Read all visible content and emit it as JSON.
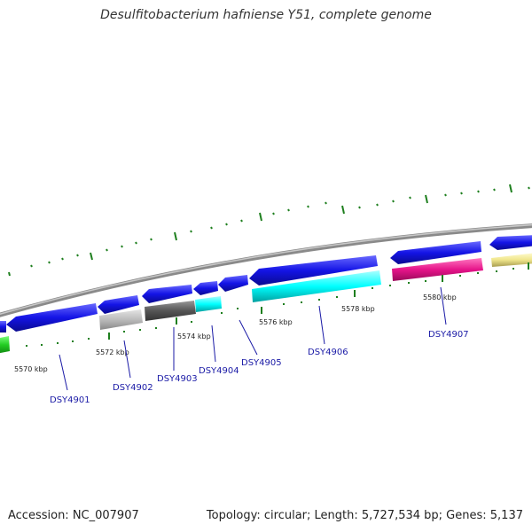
{
  "title": "Desulfitobacterium hafniense Y51, complete genome",
  "footer": {
    "accession": "Accession: NC_007907",
    "summary": "Topology: circular; Length: 5,727,534 bp; Genes: 5,137"
  },
  "colors": {
    "backbone": "#888888",
    "forward_strand": "#1414e6",
    "tick": "#1e7f1e",
    "label": "#1a1aa6"
  },
  "scale_labels": [
    "5570 kbp",
    "5572 kbp",
    "5574 kbp",
    "5576 kbp",
    "5578 kbp",
    "5580 kbp"
  ],
  "genes": [
    {
      "id": "DSY4901",
      "strand": "reverse",
      "color": "#1414e6"
    },
    {
      "id": "DSY4902",
      "strand": "reverse",
      "color": "#1414e6"
    },
    {
      "id": "DSY4903",
      "strand": "reverse",
      "color": "#1414e6"
    },
    {
      "id": "DSY4904",
      "strand": "reverse",
      "color": "#1414e6"
    },
    {
      "id": "DSY4905",
      "strand": "reverse",
      "color": "#1414e6"
    },
    {
      "id": "DSY4906",
      "strand": "reverse",
      "color": "#1414e6"
    },
    {
      "id": "DSY4907",
      "strand": "reverse",
      "color": "#1414e6"
    }
  ],
  "feature_colors": [
    "#22cc22",
    "#bbbbbb",
    "#555555",
    "#00e5e5",
    "#00ffff",
    "#e6148a",
    "#f0e68c"
  ]
}
